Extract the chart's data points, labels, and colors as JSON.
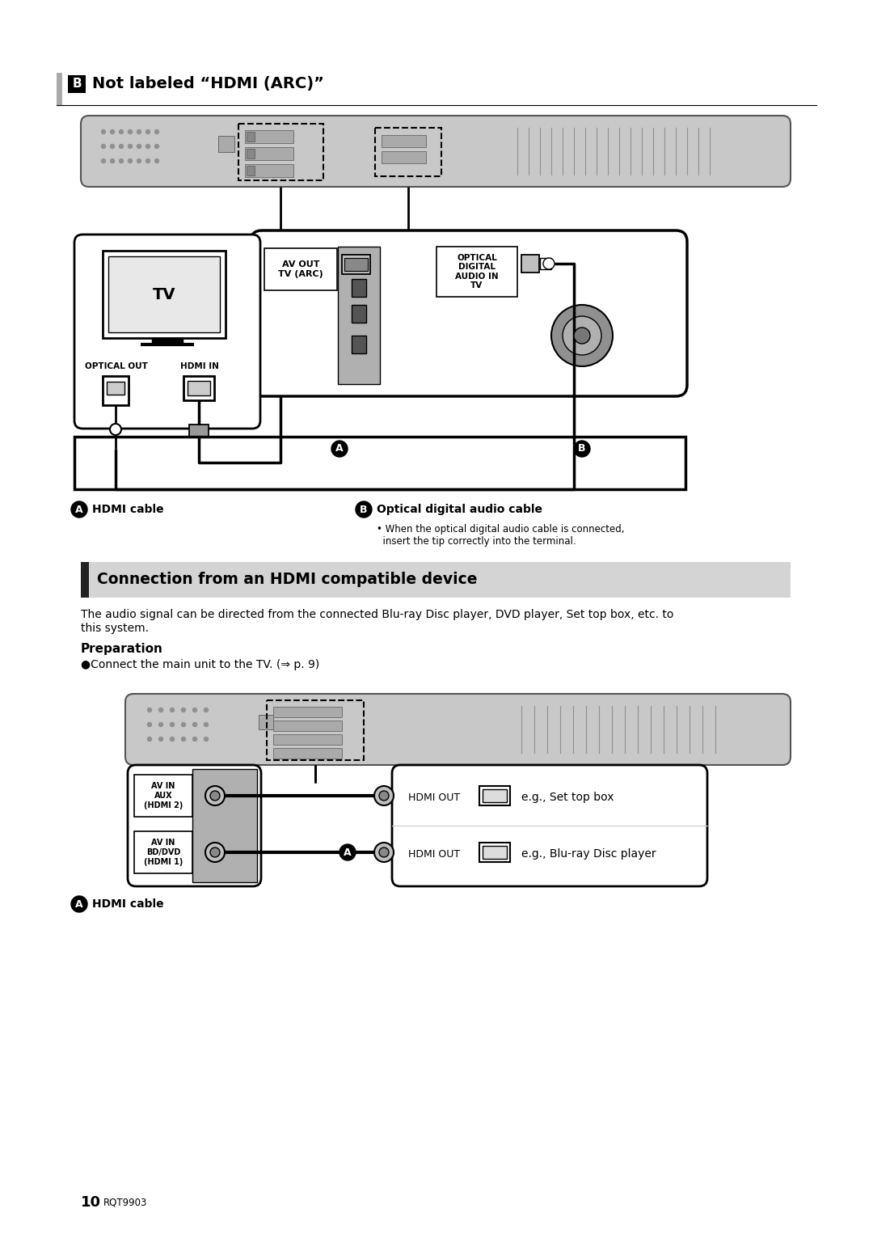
{
  "bg": "#ffffff",
  "section_b_title": "Not labeled “HDMI (ARC)”",
  "section_main_title": "Connection from an HDMI compatible device",
  "body_text_1": "The audio signal can be directed from the connected Blu-ray Disc player, DVD player, Set top box, etc. to",
  "body_text_2": "this system.",
  "preparation_title": "Preparation",
  "preparation_bullet": "●Connect the main unit to the TV. (⇒ p. 9)",
  "label_a_hdmi": "HDMI cable",
  "label_b_optical": "Optical digital audio cable",
  "label_b_note1": "• When the optical digital audio cable is connected,",
  "label_b_note2": "  insert the tip correctly into the terminal.",
  "label_a2_hdmi": "HDMI cable",
  "tv_label": "TV",
  "optical_out_label": "OPTICAL OUT",
  "hdmi_in_label": "HDMI IN",
  "av_out_label": "AV OUT\nTV (ARC)",
  "optical_digital_label": "OPTICAL\nDIGITAL\nAUDIO IN\nTV",
  "av_in_aux_label": "AV IN\nAUX\n(HDMI 2)",
  "av_in_bddvd_label": "AV IN\nBD/DVD\n(HDMI 1)",
  "hdmi_out1_label": "HDMI OUT",
  "hdmi_out2_label": "HDMI OUT",
  "eg_set_top_box": "e.g., Set top box",
  "eg_bluray": "e.g., Blu-ray Disc player",
  "footer_num": "10",
  "footer_code": "RQT9903",
  "soundbar_fill": "#c8c8c8",
  "soundbar_edge": "#555555",
  "section_bg": "#d4d4d4",
  "dark_bar": "#222222",
  "gray_bar": "#aaaaaa",
  "white": "#ffffff",
  "black": "#000000",
  "mid_gray": "#999999",
  "light_gray": "#dddddd",
  "connector_gray": "#b0b0b0"
}
